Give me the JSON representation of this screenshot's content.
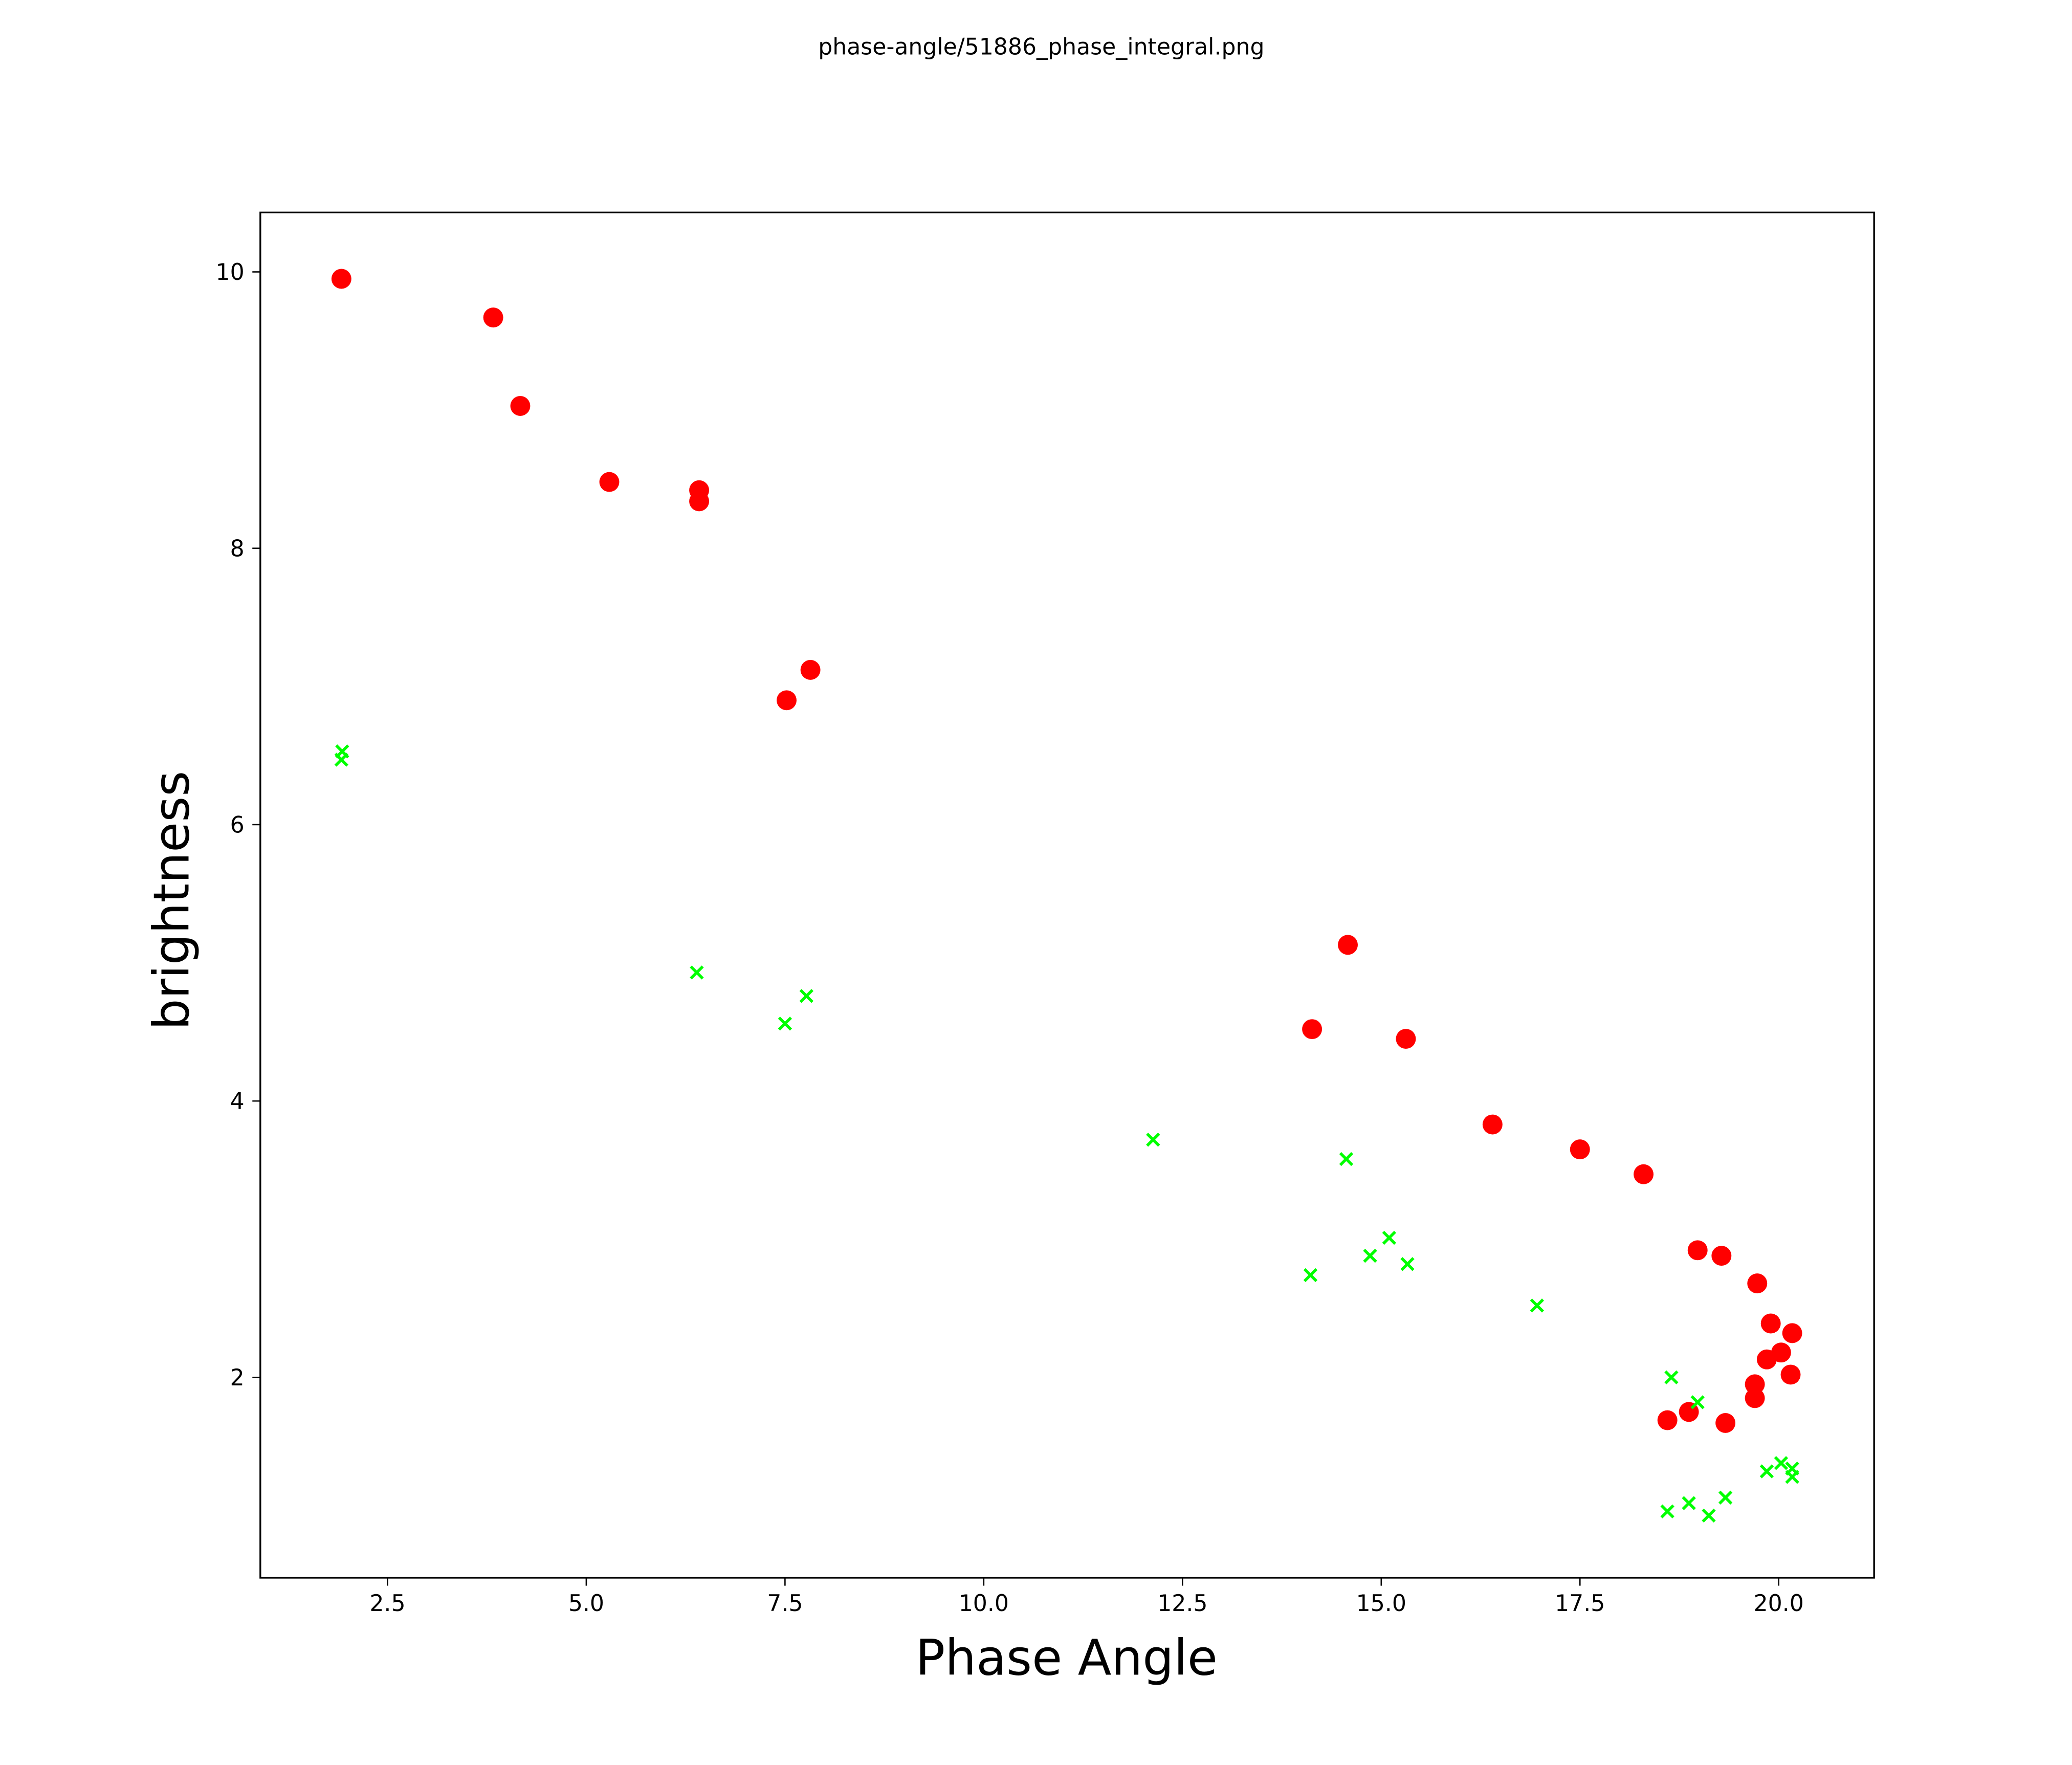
{
  "chart_data": {
    "type": "scatter",
    "title": "phase-angle/51886_phase_integral.png",
    "xlabel": "Phase Angle",
    "ylabel": "brightness",
    "xlim": [
      0.9,
      21.2
    ],
    "ylim": [
      0.55,
      10.43
    ],
    "xticks": [
      2.5,
      5.0,
      7.5,
      10.0,
      12.5,
      15.0,
      17.5,
      20.0
    ],
    "xtick_labels": [
      "2.5",
      "5.0",
      "7.5",
      "10.0",
      "12.5",
      "15.0",
      "17.5",
      "20.0"
    ],
    "yticks": [
      2,
      4,
      6,
      8,
      10
    ],
    "ytick_labels": [
      "2",
      "4",
      "6",
      "8",
      "10"
    ],
    "grid": false,
    "series": [
      {
        "name": "red-circles",
        "marker": "circle",
        "color": "#ff0000",
        "x": [
          1.92,
          3.83,
          4.17,
          5.29,
          6.42,
          6.42,
          7.82,
          7.52,
          14.58,
          14.13,
          15.31,
          16.4,
          17.5,
          18.3,
          18.98,
          19.28,
          19.73,
          19.9,
          20.17,
          20.03,
          19.85,
          20.15,
          19.7,
          19.7,
          18.6,
          18.87,
          19.33
        ],
        "y": [
          9.95,
          9.67,
          9.03,
          8.48,
          8.42,
          8.34,
          7.12,
          6.9,
          5.13,
          4.52,
          4.45,
          3.83,
          3.65,
          3.47,
          2.92,
          2.88,
          2.68,
          2.39,
          2.32,
          2.18,
          2.13,
          2.02,
          1.95,
          1.85,
          1.69,
          1.75,
          1.67
        ]
      },
      {
        "name": "green-crosses",
        "marker": "x",
        "color": "#00ff00",
        "x": [
          1.93,
          1.92,
          6.39,
          7.77,
          7.5,
          12.13,
          14.56,
          15.1,
          14.86,
          15.33,
          14.11,
          16.96,
          18.65,
          18.98,
          20.03,
          20.17,
          19.85,
          20.17,
          19.33,
          18.87,
          18.6,
          19.12
        ],
        "y": [
          6.53,
          6.47,
          4.93,
          4.76,
          4.56,
          3.72,
          3.58,
          3.01,
          2.88,
          2.82,
          2.74,
          2.52,
          2.0,
          1.82,
          1.38,
          1.34,
          1.32,
          1.28,
          1.13,
          1.09,
          1.03,
          1.0
        ]
      }
    ]
  }
}
